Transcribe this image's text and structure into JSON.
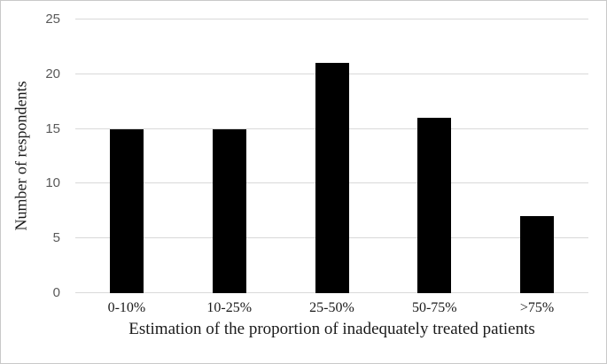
{
  "figure": {
    "background": "#ffffff",
    "border_color": "#c9c9c9"
  },
  "chart_data": {
    "type": "bar",
    "title": "",
    "categories": [
      "0-10%",
      "10-25%",
      "25-50%",
      "50-75%",
      ">75%"
    ],
    "values": [
      15,
      15,
      21,
      16,
      7
    ],
    "xlabel": "Estimation of the proportion of inadequately treated patients",
    "ylabel": "Number of respondents",
    "ylim": [
      0,
      25
    ],
    "yticks": [
      0,
      5,
      10,
      15,
      20,
      25
    ],
    "grid": "horizontal",
    "legend": "none",
    "bar_color": "#000000",
    "gridline_color": "#d9d9d9",
    "tick_label_color": "#595959"
  }
}
